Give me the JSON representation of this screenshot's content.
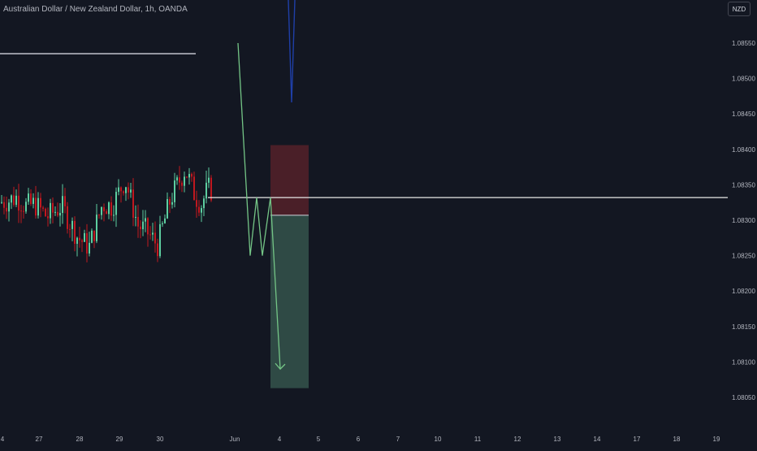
{
  "symbol": {
    "title": "Australian Dollar / New Zealand Dollar, 1h, OANDA"
  },
  "currency_badge": "NZD",
  "price_axis": {
    "labels": [
      "1.08550",
      "1.08500",
      "1.08450",
      "1.08400",
      "1.08350",
      "1.08300",
      "1.08250",
      "1.08200",
      "1.08150",
      "1.08100",
      "1.08050"
    ]
  },
  "time_axis": {
    "labels": [
      "4",
      "27",
      "28",
      "29",
      "30",
      "Jun",
      "4",
      "5",
      "6",
      "7",
      "10",
      "11",
      "12",
      "13",
      "14",
      "17",
      "18",
      "19"
    ]
  },
  "chart_data": {
    "type": "candlestick",
    "instrument": "Australian Dollar / New Zealand Dollar",
    "interval": "1h",
    "source": "OANDA",
    "quote_currency": "NZD",
    "y_range": [
      1.0802,
      1.0858
    ],
    "resistance_level": 1.08535,
    "entry_level": 1.08332,
    "short_position": {
      "entry": 1.08307,
      "stop": 1.08406,
      "target": 1.08063
    },
    "projected_path": [
      1.0855,
      1.0825,
      1.08332,
      1.0825,
      1.08332,
      1.0809
    ],
    "colors": {
      "background": "#131722",
      "bull": "#5dcea0",
      "bear": "#c0181f",
      "stop_zone": "#4a1f28",
      "target_zone": "#2f4a45",
      "projection": "#74c586",
      "blue_line": "#1f3fa8",
      "axis_text": "#b2b5be"
    }
  }
}
